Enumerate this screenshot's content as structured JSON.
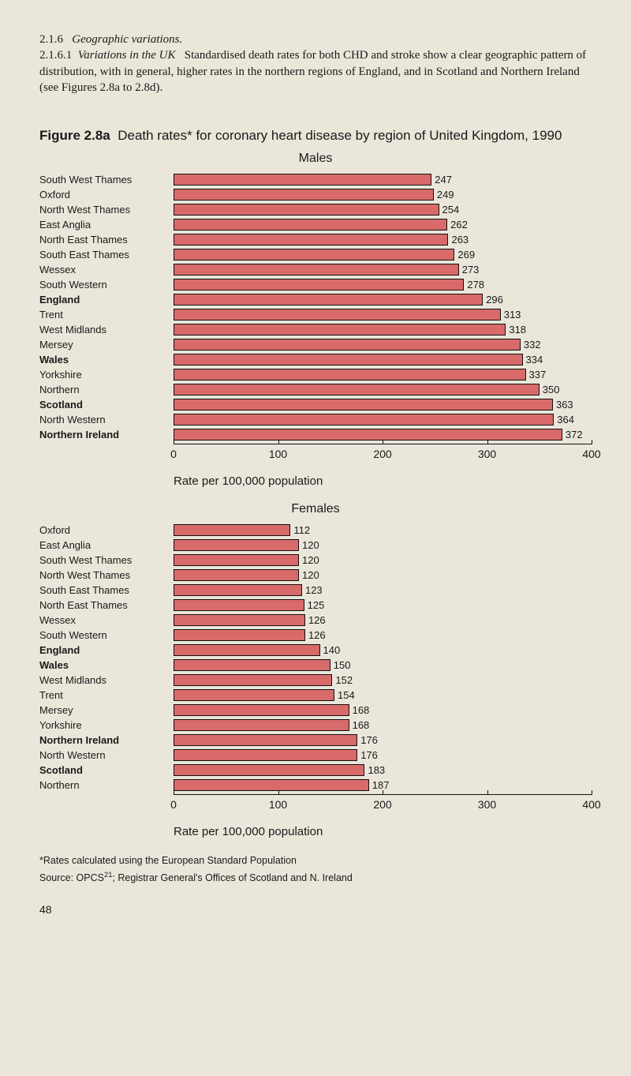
{
  "text": {
    "section_num": "2.1.6",
    "section_title": "Geographic variations.",
    "sub_num": "2.1.6.1",
    "sub_title": "Variations in the UK",
    "body": "Standardised death rates for both CHD and stroke show a clear geographic pattern of distribution, with in general, higher rates in the northern regions of England, and in Scotland and Northern Ireland (see Figures 2.8a to 2.8d).",
    "fig_label": "Figure 2.8a",
    "fig_rest": "Death rates* for coronary heart disease by region of United Kingdom, 1990",
    "males_title": "Males",
    "females_title": "Females",
    "axis_title": "Rate per 100,000 population",
    "footnote1": "*Rates calculated using the European Standard Population",
    "footnote2_a": "Source: OPCS",
    "footnote2_sup": "21",
    "footnote2_b": "; Registrar General's Offices of Scotland and N. Ireland",
    "page": "48"
  },
  "style": {
    "bar_fill": "#d96a6a",
    "bar_border": "#111111",
    "background": "#eae6da"
  },
  "chart_common": {
    "xmin": 0,
    "xmax": 400,
    "ticks": [
      0,
      100,
      200,
      300,
      400
    ]
  },
  "males": {
    "type": "bar",
    "rows": [
      {
        "label": "South West Thames",
        "val": 247,
        "bold": false
      },
      {
        "label": "Oxford",
        "val": 249,
        "bold": false
      },
      {
        "label": "North West Thames",
        "val": 254,
        "bold": false
      },
      {
        "label": "East Anglia",
        "val": 262,
        "bold": false
      },
      {
        "label": "North East Thames",
        "val": 263,
        "bold": false
      },
      {
        "label": "South East Thames",
        "val": 269,
        "bold": false
      },
      {
        "label": "Wessex",
        "val": 273,
        "bold": false
      },
      {
        "label": "South Western",
        "val": 278,
        "bold": false
      },
      {
        "label": "England",
        "val": 296,
        "bold": true
      },
      {
        "label": "Trent",
        "val": 313,
        "bold": false
      },
      {
        "label": "West Midlands",
        "val": 318,
        "bold": false
      },
      {
        "label": "Mersey",
        "val": 332,
        "bold": false
      },
      {
        "label": "Wales",
        "val": 334,
        "bold": true
      },
      {
        "label": "Yorkshire",
        "val": 337,
        "bold": false
      },
      {
        "label": "Northern",
        "val": 350,
        "bold": false
      },
      {
        "label": "Scotland",
        "val": 363,
        "bold": true
      },
      {
        "label": "North Western",
        "val": 364,
        "bold": false
      },
      {
        "label": "Northern Ireland",
        "val": 372,
        "bold": true
      }
    ]
  },
  "females": {
    "type": "bar",
    "rows": [
      {
        "label": "Oxford",
        "val": 112,
        "bold": false
      },
      {
        "label": "East Anglia",
        "val": 120,
        "bold": false
      },
      {
        "label": "South West Thames",
        "val": 120,
        "bold": false
      },
      {
        "label": "North West Thames",
        "val": 120,
        "bold": false
      },
      {
        "label": "South East Thames",
        "val": 123,
        "bold": false
      },
      {
        "label": "North East Thames",
        "val": 125,
        "bold": false
      },
      {
        "label": "Wessex",
        "val": 126,
        "bold": false
      },
      {
        "label": "South Western",
        "val": 126,
        "bold": false
      },
      {
        "label": "England",
        "val": 140,
        "bold": true
      },
      {
        "label": "Wales",
        "val": 150,
        "bold": true
      },
      {
        "label": "West Midlands",
        "val": 152,
        "bold": false
      },
      {
        "label": "Trent",
        "val": 154,
        "bold": false
      },
      {
        "label": "Mersey",
        "val": 168,
        "bold": false
      },
      {
        "label": "Yorkshire",
        "val": 168,
        "bold": false
      },
      {
        "label": "Northern Ireland",
        "val": 176,
        "bold": true
      },
      {
        "label": "North Western",
        "val": 176,
        "bold": false
      },
      {
        "label": "Scotland",
        "val": 183,
        "bold": true
      },
      {
        "label": "Northern",
        "val": 187,
        "bold": false
      }
    ]
  }
}
